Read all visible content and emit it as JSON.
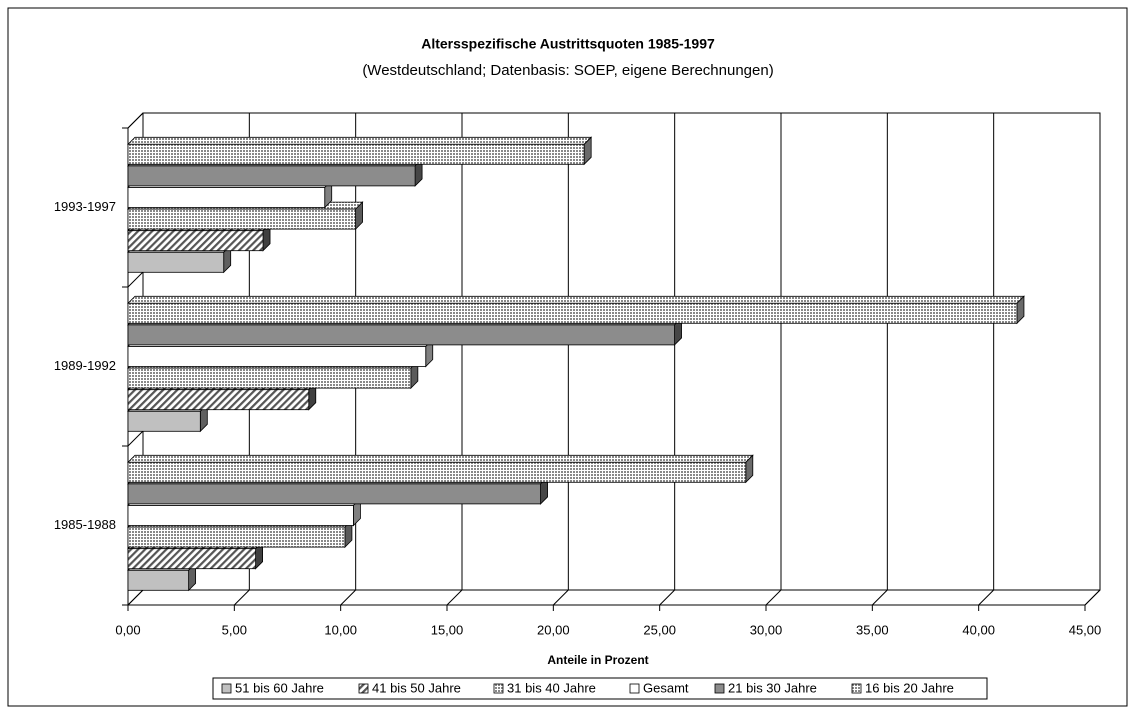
{
  "chart_data": {
    "type": "bar",
    "orientation": "horizontal",
    "title": "Altersspezifische Austrittsquoten 1985-1997",
    "subtitle": "(Westdeutschland; Datenbasis: SOEP, eigene Berechnungen)",
    "x_label": "Anteile in Prozent",
    "categories": [
      "1985-1988",
      "1989-1992",
      "1993-1997"
    ],
    "series": [
      {
        "name": "51 bis 60 Jahre",
        "color": "#c0c0c0",
        "pattern": "solid",
        "values": [
          2.85,
          3.4,
          4.5
        ]
      },
      {
        "name": "41 bis 50 Jahre",
        "color": "#808080",
        "pattern": "hatch",
        "values": [
          6.0,
          8.5,
          6.35
        ]
      },
      {
        "name": "31 bis 40 Jahre",
        "color": "#b4b4b4",
        "pattern": "dots",
        "values": [
          10.2,
          13.3,
          10.7
        ]
      },
      {
        "name": "Gesamt",
        "color": "#ffffff",
        "pattern": "solid",
        "values": [
          10.6,
          14.0,
          9.25
        ]
      },
      {
        "name": "21 bis 30 Jahre",
        "color": "#8c8c8c",
        "pattern": "solid",
        "values": [
          19.4,
          25.7,
          13.5
        ]
      },
      {
        "name": "16 bis 20 Jahre",
        "color": "#d4d4d4",
        "pattern": "dots",
        "values": [
          29.05,
          41.8,
          21.45
        ]
      }
    ],
    "xlim": [
      0,
      45
    ],
    "xticks": [
      {
        "value": 0,
        "label": "0,00"
      },
      {
        "value": 5,
        "label": "5,00"
      },
      {
        "value": 10,
        "label": "10,00"
      },
      {
        "value": 15,
        "label": "15,00"
      },
      {
        "value": 20,
        "label": "20,00"
      },
      {
        "value": 25,
        "label": "25,00"
      },
      {
        "value": 30,
        "label": "30,00"
      },
      {
        "value": 35,
        "label": "35,00"
      },
      {
        "value": 40,
        "label": "40,00"
      },
      {
        "value": 45,
        "label": "45,00"
      }
    ],
    "grid": true,
    "legend": "bottom"
  }
}
